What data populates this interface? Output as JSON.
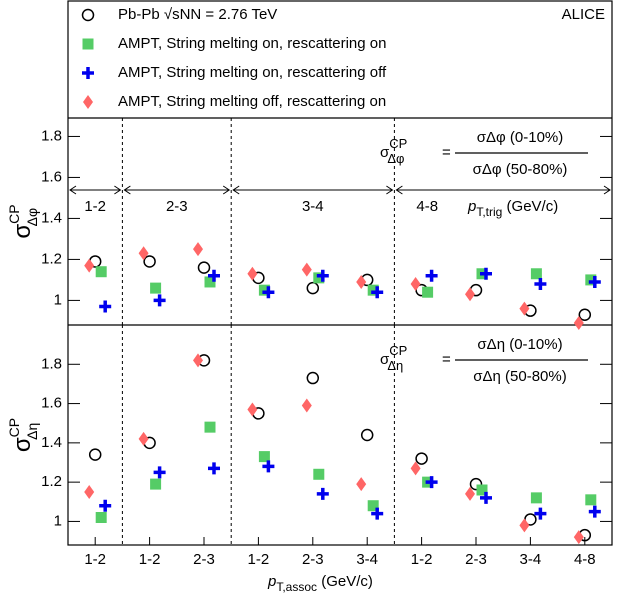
{
  "experiment": "ALICE",
  "chart_data": [
    {
      "type": "scatter",
      "panel": "top",
      "y_label": {
        "symbol": "σ",
        "sup": "CP",
        "sub": "Δφ"
      },
      "formula": {
        "lhs": "σ",
        "lhs_sup": "CP",
        "lhs_sub": "Δφ",
        "eq": "=",
        "numerator": "σΔφ (0-10%)",
        "denominator": "σΔφ (50-80%)"
      },
      "groups": [
        "1-2",
        "2-3",
        "3-4",
        "4-8"
      ],
      "group_label": {
        "p": "p",
        "sub": "T,trig",
        "unit": " (GeV/c)"
      },
      "ylim": [
        0.88,
        1.89
      ],
      "yticks": [
        1,
        1.2,
        1.4,
        1.6,
        1.8
      ],
      "series": [
        {
          "name": "Pb-Pb √sNN = 2.76 TeV",
          "marker": "circle",
          "color": "#000000",
          "values": [
            1.19,
            1.19,
            1.16,
            1.11,
            1.06,
            1.1,
            1.05,
            1.05,
            0.95,
            0.93
          ]
        },
        {
          "name": "AMPT, String melting on, rescattering on",
          "marker": "square",
          "color": "#55cc66",
          "values": [
            1.14,
            1.06,
            1.09,
            1.05,
            1.11,
            1.05,
            1.04,
            1.13,
            1.13,
            1.1
          ]
        },
        {
          "name": "AMPT, String melting on, rescattering off",
          "marker": "plus",
          "color": "#0000ee",
          "values": [
            0.97,
            1.0,
            1.12,
            1.04,
            1.12,
            1.04,
            1.12,
            1.13,
            1.08,
            1.09
          ]
        },
        {
          "name": "AMPT, String melting off, rescattering on",
          "marker": "diamond",
          "color": "#ff6666",
          "values": [
            1.17,
            1.23,
            1.25,
            1.13,
            1.15,
            1.09,
            1.08,
            1.03,
            0.96,
            0.89
          ]
        }
      ]
    },
    {
      "type": "scatter",
      "panel": "bottom",
      "y_label": {
        "symbol": "σ",
        "sup": "CP",
        "sub": "Δη"
      },
      "formula": {
        "lhs": "σ",
        "lhs_sup": "CP",
        "lhs_sub": "Δη",
        "eq": "=",
        "numerator": "σΔη (0-10%)",
        "denominator": "σΔη (50-80%)"
      },
      "categories": [
        "1-2",
        "1-2",
        "2-3",
        "1-2",
        "2-3",
        "3-4",
        "1-2",
        "2-3",
        "3-4",
        "4-8"
      ],
      "x_label": {
        "p": "p",
        "sub": "T,assoc",
        "unit": " (GeV/c)"
      },
      "ylim": [
        0.88,
        2.0
      ],
      "yticks": [
        1,
        1.2,
        1.4,
        1.6,
        1.8
      ],
      "series": [
        {
          "marker": "circle",
          "color": "#000000",
          "values": [
            1.34,
            1.4,
            1.82,
            1.55,
            1.73,
            1.44,
            1.32,
            1.19,
            1.01,
            0.93
          ]
        },
        {
          "marker": "square",
          "color": "#55cc66",
          "values": [
            1.02,
            1.19,
            1.48,
            1.33,
            1.24,
            1.08,
            1.2,
            1.16,
            1.12,
            1.11
          ]
        },
        {
          "marker": "plus",
          "color": "#0000ee",
          "values": [
            1.08,
            1.25,
            1.27,
            1.28,
            1.14,
            1.04,
            1.2,
            1.12,
            1.04,
            1.05
          ]
        },
        {
          "marker": "diamond",
          "color": "#ff6666",
          "values": [
            1.15,
            1.42,
            1.82,
            1.57,
            1.59,
            1.19,
            1.27,
            1.14,
            0.98,
            0.92
          ]
        }
      ]
    }
  ]
}
